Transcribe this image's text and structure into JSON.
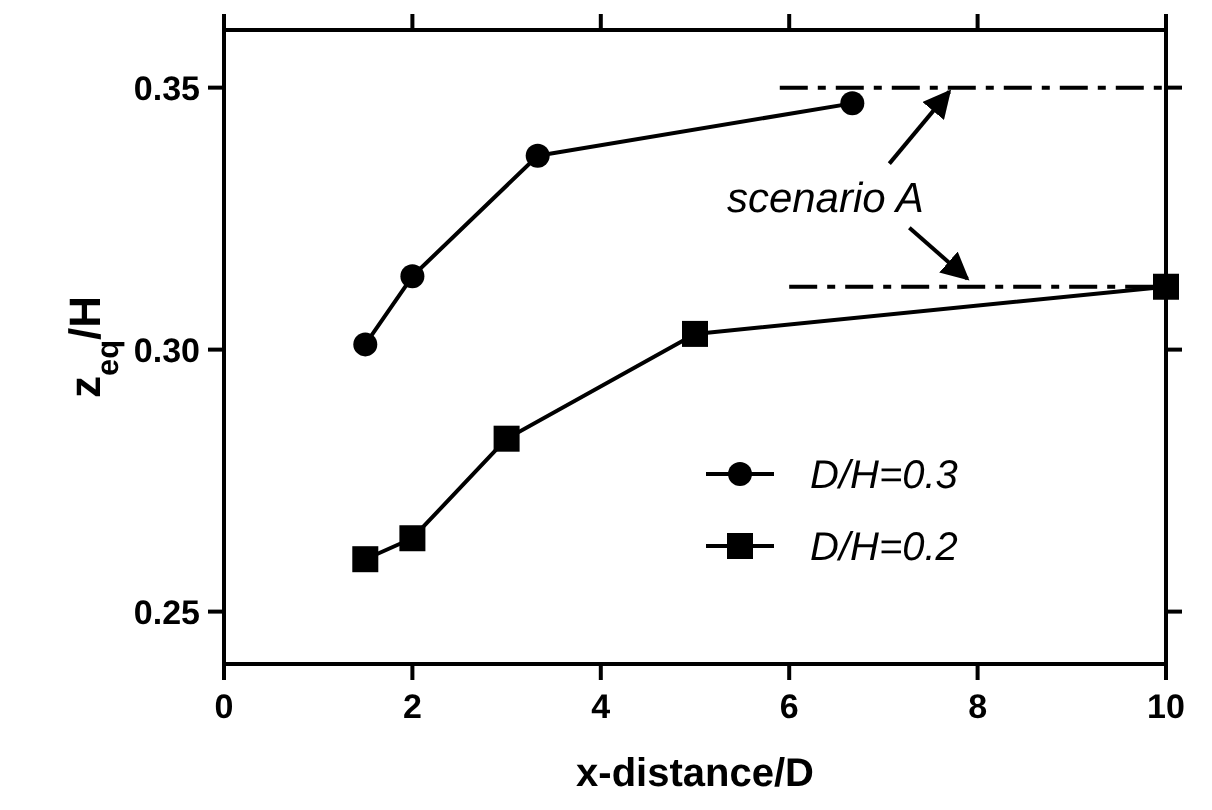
{
  "chart_data": {
    "type": "line",
    "xlabel": "x-distance/D",
    "ylabel": "z$_{eq}$/H",
    "xlim": [
      0,
      10
    ],
    "xticks": [
      0,
      2,
      4,
      6,
      8,
      10
    ],
    "ylim": [
      0.24,
      0.361
    ],
    "yticks": [
      {
        "value": 0.25,
        "label": "0.25"
      },
      {
        "value": 0.3,
        "label": "0.30"
      },
      {
        "value": 0.35,
        "label": "0.35"
      }
    ],
    "grid": false,
    "legend": "bottom right",
    "line_style": "solid",
    "series": [
      {
        "name": "D/H=0.3",
        "color": "#000000",
        "marker": "circle",
        "x": [
          1.5,
          2,
          3.33,
          6.67
        ],
        "values": [
          0.301,
          0.314,
          0.337,
          0.347
        ]
      },
      {
        "name": "D/H=0.2",
        "color": "#000000",
        "marker": "square",
        "x": [
          1.5,
          2,
          3,
          5,
          10
        ],
        "values": [
          0.26,
          0.264,
          0.283,
          0.303,
          0.312
        ]
      },
      {
        "color": "#000000",
        "marker": "none",
        "line_style": "dashed",
        "x": [
          5.9,
          10
        ],
        "values": [
          0.35,
          0.35
        ]
      },
      {
        "color": "#000000",
        "marker": "none",
        "line_style": "dashed",
        "x": [
          6,
          10
        ],
        "values": [
          0.312,
          0.312
        ]
      }
    ],
    "annotations": [
      {
        "text": "scenario A",
        "x": 7.7,
        "y": 0.35
      }
    ]
  }
}
